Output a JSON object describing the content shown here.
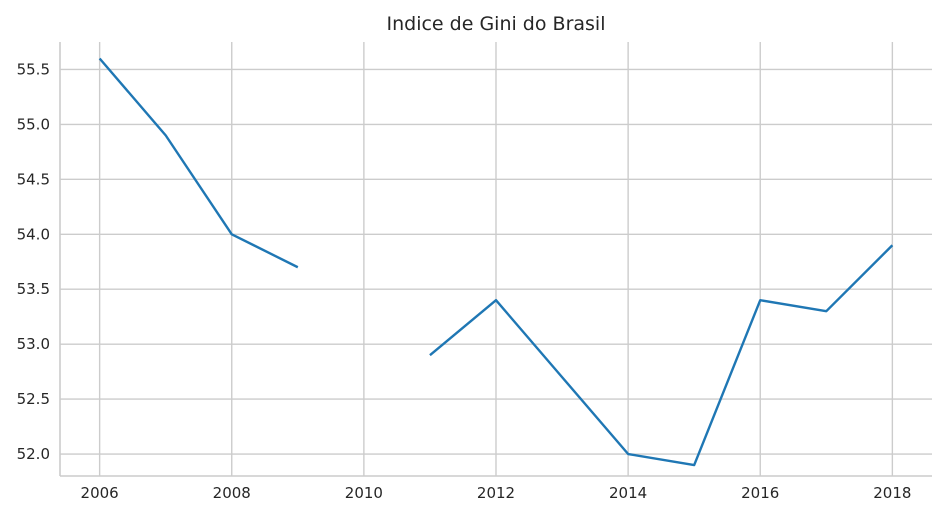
{
  "chart_data": {
    "type": "line",
    "title": "Indice de Gini do Brasil",
    "xlabel": "",
    "ylabel": "",
    "x": [
      2006,
      2007,
      2008,
      2009,
      2010,
      2011,
      2012,
      2013,
      2014,
      2015,
      2016,
      2017,
      2018
    ],
    "series": [
      {
        "values": [
          55.6,
          54.9,
          54.0,
          53.7,
          null,
          52.9,
          53.4,
          52.7,
          52.0,
          51.9,
          53.4,
          53.3,
          53.9
        ],
        "color": "#1f77b4"
      }
    ],
    "xticks": [
      "2006",
      "2008",
      "2010",
      "2012",
      "2014",
      "2016",
      "2018"
    ],
    "yticks": [
      "52.0",
      "52.5",
      "53.0",
      "53.5",
      "54.0",
      "54.5",
      "55.0",
      "55.5"
    ],
    "xlim": [
      2005.4,
      2018.6
    ],
    "ylim": [
      51.8,
      55.75
    ],
    "grid": true,
    "legend": "none"
  }
}
